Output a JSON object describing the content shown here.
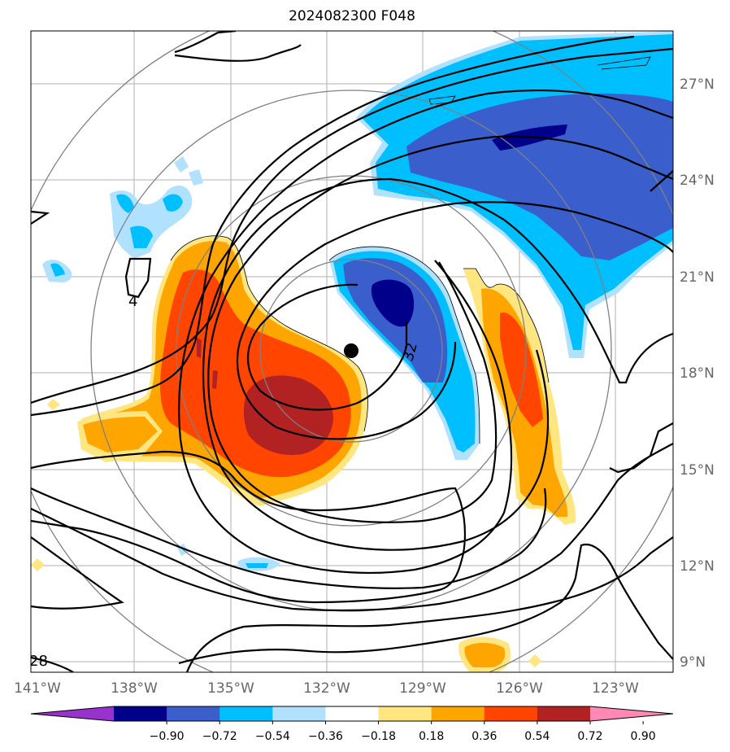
{
  "title": "2024082300 F048",
  "map": {
    "lat_labels": [
      "27°N",
      "24°N",
      "21°N",
      "18°N",
      "15°N",
      "12°N",
      "9°N"
    ],
    "lon_labels": [
      "141°W",
      "138°W",
      "135°W",
      "132°W",
      "129°W",
      "126°W",
      "123°W"
    ],
    "contour_labels": [
      "32",
      "4",
      "28"
    ],
    "center_marker": "storm-center"
  },
  "colorbar": {
    "ticks": [
      "−0.90",
      "−0.72",
      "−0.54",
      "−0.36",
      "−0.18",
      "0.18",
      "0.36",
      "0.54",
      "0.72",
      "0.90"
    ],
    "colors": [
      "#9932cc",
      "#00008b",
      "#3a5fcd",
      "#00bfff",
      "#b0e2ff",
      "#ffffff",
      "#ffe680",
      "#ffa500",
      "#ff4500",
      "#b22222",
      "#ff88b4"
    ]
  },
  "fill_colors": {
    "strong_neg": "#00008b",
    "mod_neg": "#3a5fcd",
    "neg": "#00bfff",
    "weak_neg": "#b0e2ff",
    "weak_pos": "#ffe680",
    "pos": "#ffa500",
    "mod_pos": "#ff4500",
    "strong_pos": "#b22222"
  }
}
